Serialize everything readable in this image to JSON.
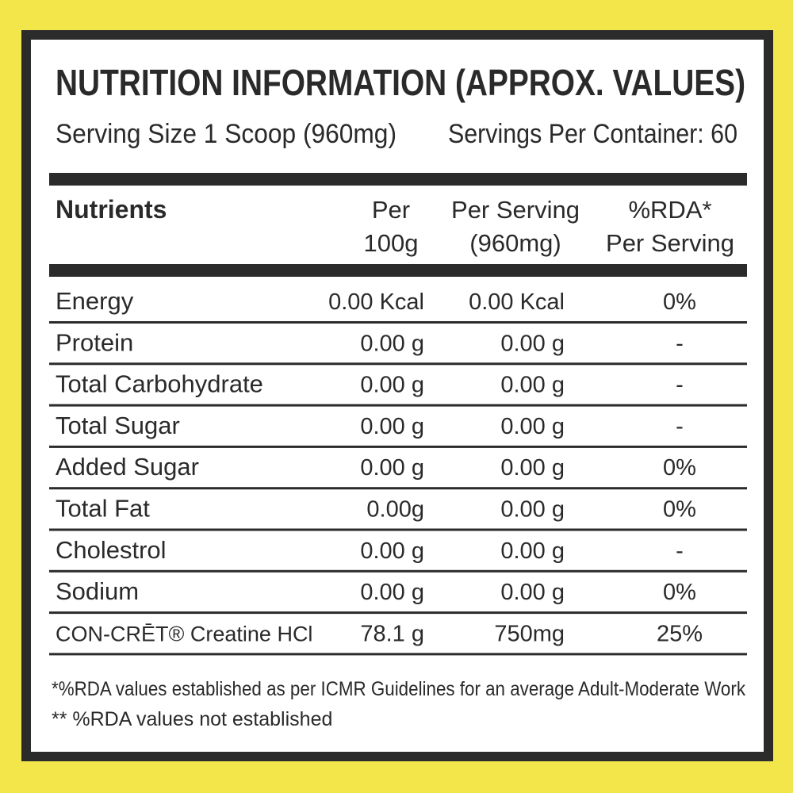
{
  "header": {
    "title": "NUTRITION INFORMATION (APPROX. VALUES)",
    "serving_size": "Serving Size 1 Scoop (960mg)",
    "servings_per_container": "Servings Per Container: 60"
  },
  "table": {
    "columns": [
      [
        "Nutrients"
      ],
      [
        "Per",
        "100g"
      ],
      [
        "Per Serving",
        "(960mg)"
      ],
      [
        "%RDA*",
        "Per Serving"
      ]
    ],
    "rows": [
      [
        "Energy",
        "0.00 Kcal",
        "0.00 Kcal",
        "0%"
      ],
      [
        "Protein",
        "0.00 g",
        "0.00 g",
        "-"
      ],
      [
        "Total Carbohydrate",
        "0.00 g",
        "0.00 g",
        "-"
      ],
      [
        "Total Sugar",
        "0.00 g",
        "0.00 g",
        "-"
      ],
      [
        "Added Sugar",
        "0.00 g",
        "0.00 g",
        "0%"
      ],
      [
        "Total Fat",
        "0.00g",
        "0.00 g",
        "0%"
      ],
      [
        "Cholestrol",
        "0.00 g",
        "0.00 g",
        "-"
      ],
      [
        "Sodium",
        "0.00 g",
        "0.00 g",
        "0%"
      ],
      [
        "CON-CRĒT® Creatine HCl",
        "78.1 g",
        "750mg",
        "25%"
      ]
    ]
  },
  "footnotes": [
    "*%RDA values established as per ICMR Guidelines for an average Adult-Moderate Work",
    "** %RDA values not established"
  ]
}
